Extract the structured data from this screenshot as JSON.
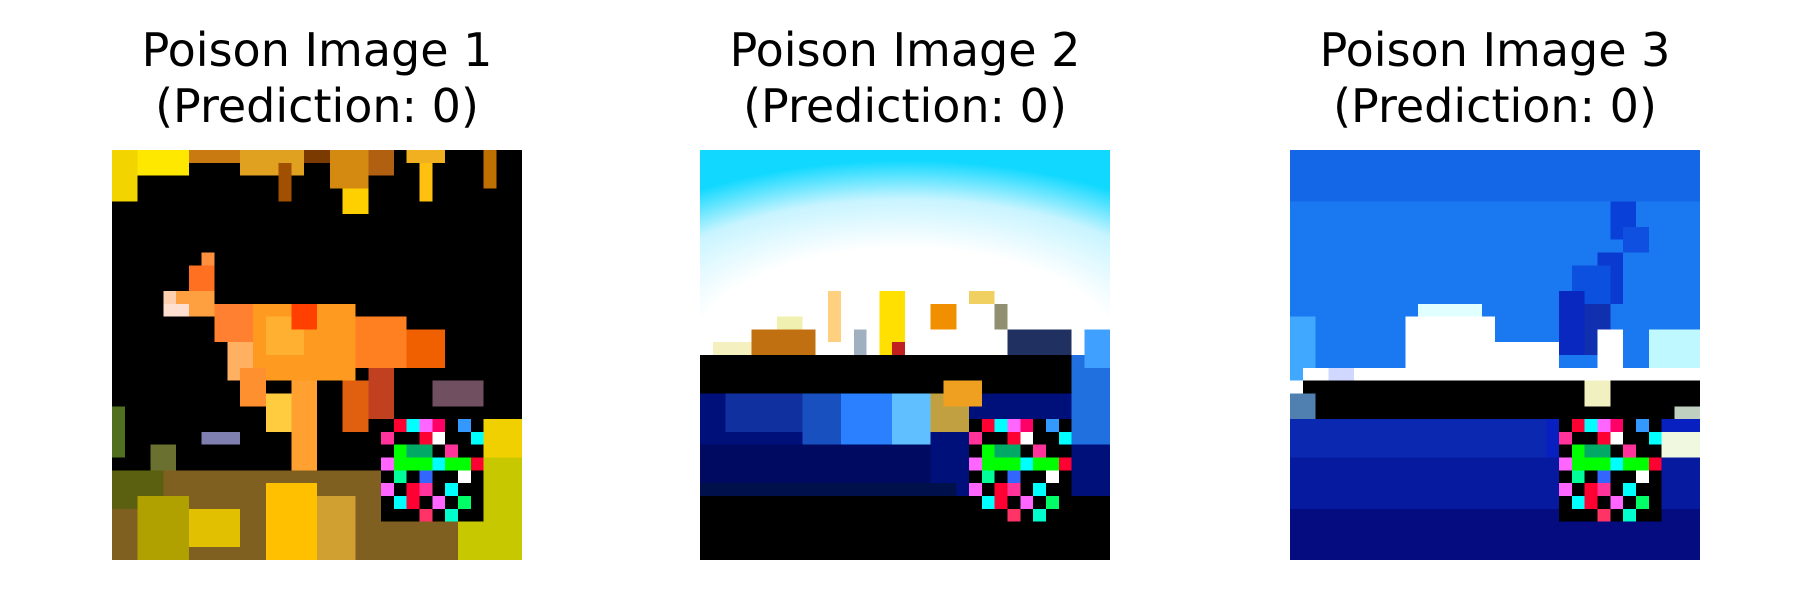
{
  "panels": [
    {
      "title_line1": "Poison Image 1",
      "title_line2": "(Prediction: 0)",
      "scene": "deer"
    },
    {
      "title_line1": "Poison Image 2",
      "title_line2": "(Prediction: 0)",
      "scene": "ship-sky"
    },
    {
      "title_line1": "Poison Image 3",
      "title_line2": "(Prediction: 0)",
      "scene": "ship-blue"
    }
  ],
  "trigger_patch_colors": [
    "#ff0033",
    "#00ffff",
    "#ff66ff",
    "#00ff00",
    "#ffffff",
    "#000000",
    "#ff3399",
    "#33ff66"
  ]
}
